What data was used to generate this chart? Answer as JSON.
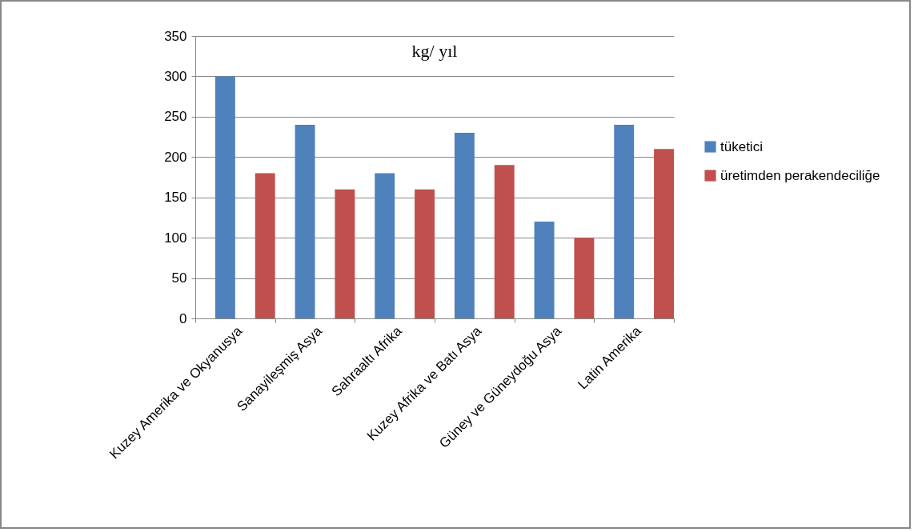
{
  "chart_data": {
    "type": "bar",
    "title": "kg/ yıl",
    "categories": [
      "Kuzey Amerika ve Okyanusya",
      "Sanayileşmiş Asya",
      "Sahraaltı Afrika",
      "Kuzey Afrika ve Batı Asya",
      "Güney ve Güneydoğu Asya",
      "Latin Amerika"
    ],
    "series": [
      {
        "name": "tüketici",
        "color": "#4f81bd",
        "values": [
          300,
          240,
          180,
          230,
          120,
          240
        ]
      },
      {
        "name": "üretimden perakendeciliğe",
        "color": "#c0504d",
        "values": [
          180,
          160,
          160,
          190,
          100,
          210
        ]
      }
    ],
    "ylim": [
      0,
      350
    ],
    "yticks": [
      0,
      50,
      100,
      150,
      200,
      250,
      300,
      350
    ],
    "grid": "y",
    "legend": "right"
  }
}
